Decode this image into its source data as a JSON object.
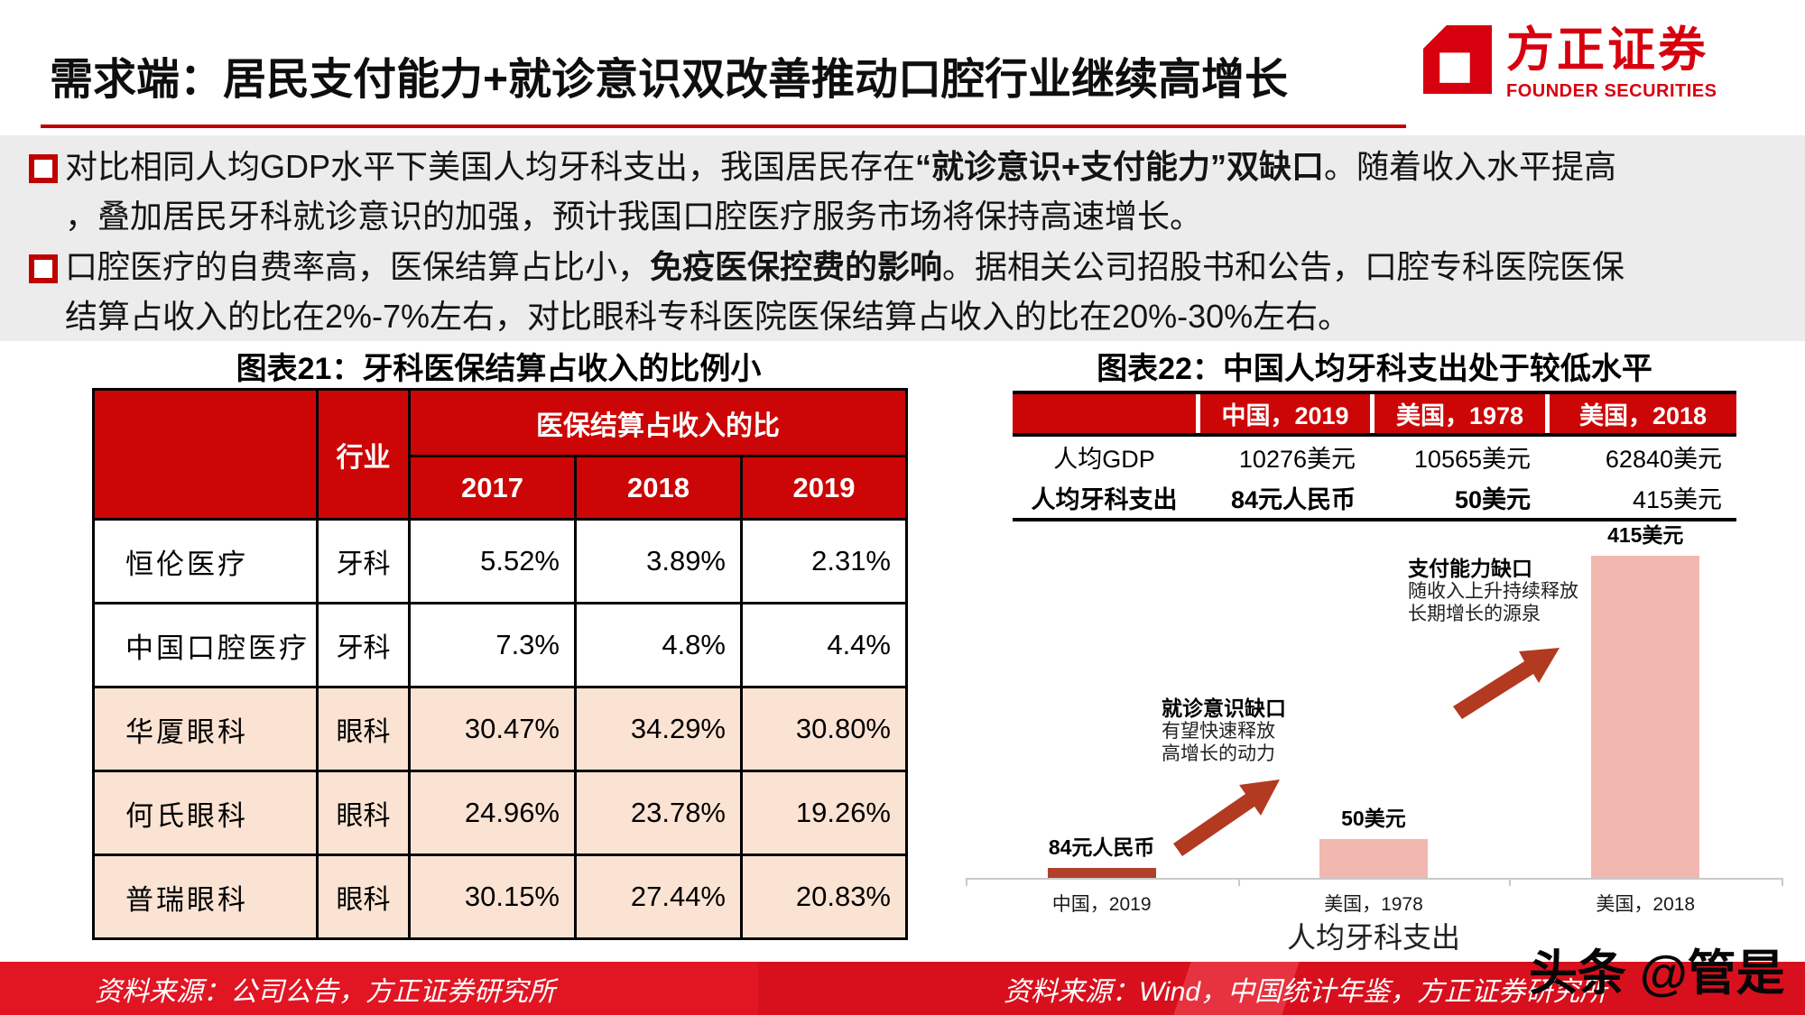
{
  "header": {
    "title": "需求端：居民支付能力+就诊意识双改善推动口腔行业继续高增长",
    "logo": {
      "cn": "方正证券",
      "en": "FOUNDER SECURITIES"
    }
  },
  "bullets": [
    {
      "lines": [
        {
          "segments": [
            {
              "t": "对比相同人均GDP水平下美国人均牙科支出，我国居民存在",
              "b": false
            },
            {
              "t": "“就诊意识+支付能力”双缺口",
              "b": true
            },
            {
              "t": "。随着收入水平提高",
              "b": false
            }
          ]
        },
        {
          "segments": [
            {
              "t": "，叠加居民牙科就诊意识的加强，预计我国口腔医疗服务市场将保持高速增长。",
              "b": false
            }
          ]
        }
      ]
    },
    {
      "lines": [
        {
          "segments": [
            {
              "t": "口腔医疗的自费率高，医保结算占比小，",
              "b": false
            },
            {
              "t": "免疫医保控费的影响",
              "b": true
            },
            {
              "t": "。据相关公司招股书和公告，口腔专科医院医保",
              "b": false
            }
          ]
        },
        {
          "segments": [
            {
              "t": "结算占收入的比在2%-7%左右，对比眼科专科医院医保结算占收入的比在20%-30%左右。",
              "b": false
            }
          ]
        }
      ]
    }
  ],
  "chart_data": [
    {
      "type": "table",
      "title": "图表21：牙科医保结算占收入的比例小",
      "header": {
        "industry": "行业",
        "group": "医保结算占收入的比",
        "years": [
          "2017",
          "2018",
          "2019"
        ]
      },
      "rows": [
        {
          "name": "恒伦医疗",
          "industry": "牙科",
          "values": [
            "5.52%",
            "3.89%",
            "2.31%"
          ],
          "highlight": false
        },
        {
          "name": "中国口腔医疗",
          "industry": "牙科",
          "values": [
            "7.3%",
            "4.8%",
            "4.4%"
          ],
          "highlight": false
        },
        {
          "name": "华厦眼科",
          "industry": "眼科",
          "values": [
            "30.47%",
            "34.29%",
            "30.80%"
          ],
          "highlight": true
        },
        {
          "name": "何氏眼科",
          "industry": "眼科",
          "values": [
            "24.96%",
            "23.78%",
            "19.26%"
          ],
          "highlight": true
        },
        {
          "name": "普瑞眼科",
          "industry": "眼科",
          "values": [
            "30.15%",
            "27.44%",
            "20.83%"
          ],
          "highlight": true
        }
      ]
    },
    {
      "type": "bar",
      "title": "图表22：中国人均牙科支出处于较低水平",
      "table": {
        "col_headers": [
          "中国，2019",
          "美国，1978",
          "美国，2018"
        ],
        "rows": [
          {
            "label": "人均GDP",
            "label_bold": false,
            "values": [
              "10276美元",
              "10565美元",
              "62840美元"
            ],
            "values_bold": [
              false,
              false,
              false
            ]
          },
          {
            "label": "人均牙科支出",
            "label_bold": true,
            "values": [
              "84元人民币",
              "50美元",
              "415美元"
            ],
            "values_bold": [
              true,
              true,
              false
            ]
          }
        ]
      },
      "categories": [
        "中国，2019",
        "美国，1978",
        "美国，2018"
      ],
      "bar_value_labels": [
        "84元人民币",
        "50美元",
        "415美元"
      ],
      "values_usd_equivalent": [
        12.8,
        50,
        415
      ],
      "ylim": [
        0,
        430
      ],
      "xlabel": "人均牙科支出",
      "bar_colors": [
        "#b2402a",
        "#f2b8b0",
        "#f2b8b0"
      ],
      "annotations": [
        {
          "title": "就诊意识缺口",
          "lines": [
            "有望快速释放",
            "高增长的动力"
          ]
        },
        {
          "title": "支付能力缺口",
          "lines": [
            "随收入上升持续释放",
            "长期增长的源泉"
          ]
        }
      ]
    }
  ],
  "footer": {
    "left_source": "资料来源：公司公告，方正证券研究所",
    "right_source": "资料来源：Wind，中国统计年鉴，方正证券研究所"
  },
  "watermark": "头条 @管是",
  "colors": {
    "brand_red": "#d7000f",
    "table_header_red": "#cc0606",
    "highlight_pink": "#fbe3d3",
    "bar_pink": "#f2b8b0",
    "bar_dark_red": "#b2402a",
    "footer_red": "#d8101d",
    "summary_gray": "#ececec"
  }
}
